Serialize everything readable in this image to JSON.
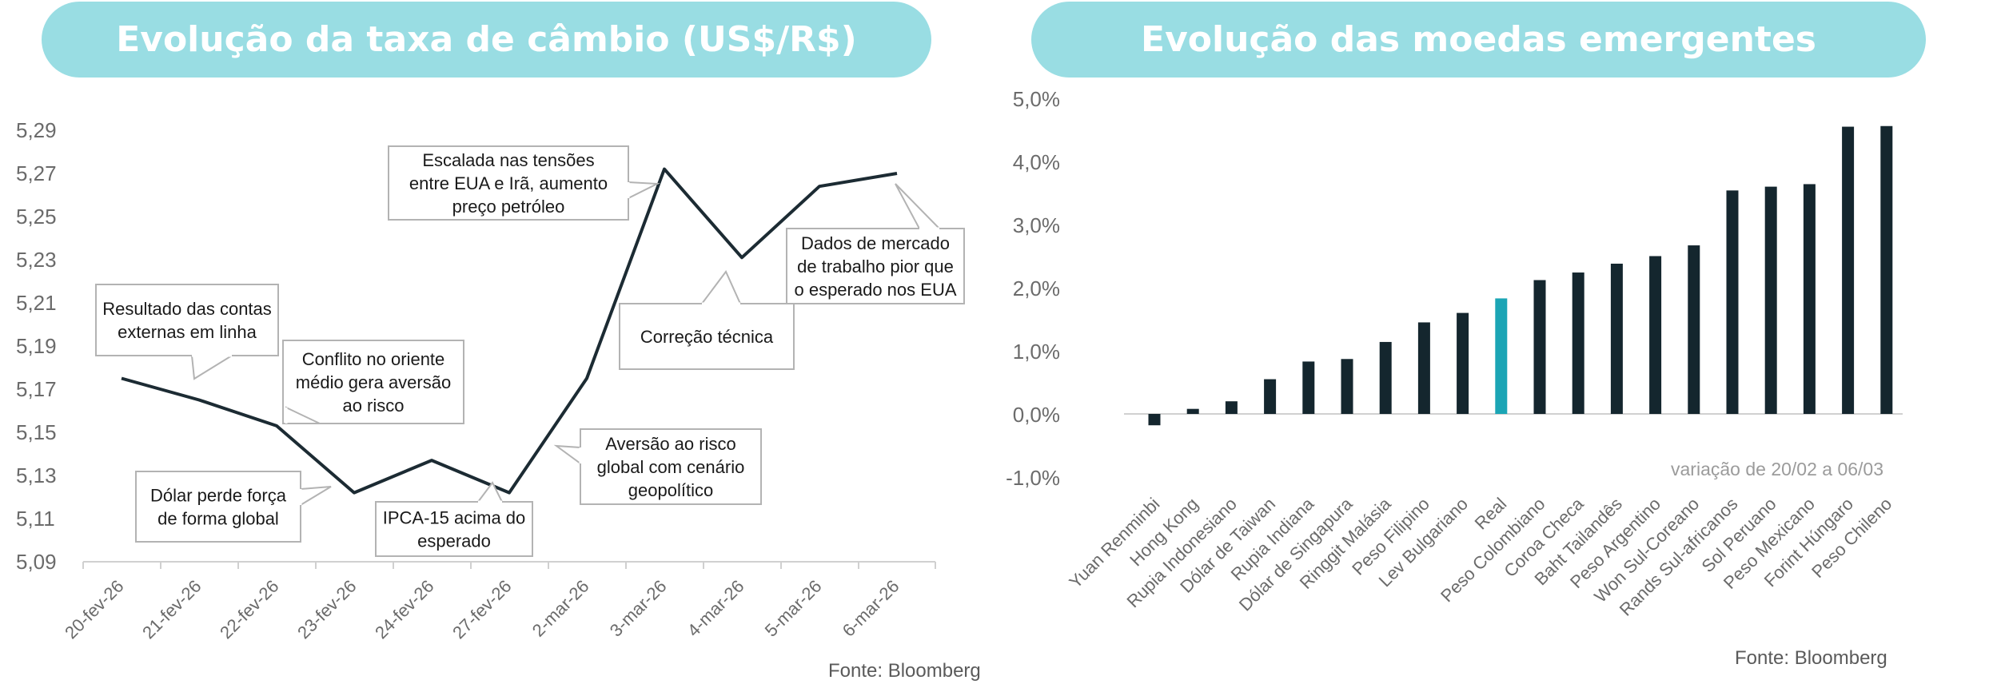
{
  "left_panel": {
    "title": "Evolução da taxa de câmbio (US$/R$)",
    "source": "Fonte: Bloomberg"
  },
  "right_panel": {
    "title": "Evolução das moedas emergentes",
    "source": "Fonte: Bloomberg",
    "note": "variação de 20/02 a 06/03"
  },
  "colors": {
    "title_bg": "#99dde3",
    "line": "#1c2b33",
    "bar": "#14262e",
    "highlight_bar": "#1ba5b5",
    "callout_border": "#b3b3b3"
  },
  "chart_data": [
    {
      "type": "line",
      "title": "Evolução da taxa de câmbio (US$/R$)",
      "categories": [
        "20-fev-26",
        "21-fev-26",
        "22-fev-26",
        "23-fev-26",
        "24-fev-26",
        "27-fev-26",
        "2-mar-26",
        "3-mar-26",
        "4-mar-26",
        "5-mar-26",
        "6-mar-26"
      ],
      "values": [
        5.175,
        5.165,
        5.153,
        5.122,
        5.137,
        5.122,
        5.175,
        5.272,
        5.231,
        5.264,
        5.27
      ],
      "ylim": [
        5.09,
        5.29
      ],
      "yticks": [
        "5,09",
        "5,11",
        "5,13",
        "5,15",
        "5,17",
        "5,19",
        "5,21",
        "5,23",
        "5,25",
        "5,27",
        "5,29"
      ],
      "grid": false,
      "annotations": [
        {
          "text": [
            "Resultado das contas",
            "externas em linha"
          ],
          "category": "21-fev-26"
        },
        {
          "text": [
            "Conflito no oriente",
            "médio gera aversão",
            "ao risco"
          ],
          "category": "22-fev-26"
        },
        {
          "text": [
            "Dólar perde força",
            "de forma global"
          ],
          "category": "23-fev-26"
        },
        {
          "text": [
            "IPCA-15 acima do",
            "esperado"
          ],
          "category": "27-fev-26"
        },
        {
          "text": [
            "Aversão ao risco",
            "global com cenário",
            "geopolítico"
          ],
          "category": "2-mar-26"
        },
        {
          "text": [
            "Escalada nas tensões",
            "entre EUA e Irã, aumento",
            "preço petróleo"
          ],
          "category": "3-mar-26"
        },
        {
          "text": [
            "Correção técnica"
          ],
          "category": "4-mar-26"
        },
        {
          "text": [
            "Dados de mercado",
            "de trabalho pior que",
            "o esperado nos EUA"
          ],
          "category": "6-mar-26"
        }
      ]
    },
    {
      "type": "bar",
      "title": "Evolução das moedas emergentes",
      "categories": [
        "Yuan Renminbi",
        "Hong Kong",
        "Rupia Indonesiano",
        "Dólar de Taiwan",
        "Rupia Indiana",
        "Dólar de Singapura",
        "Ringgit Malásia",
        "Peso Filipino",
        "Lev Bulgariano",
        "Real",
        "Peso Colombiano",
        "Coroa Checa",
        "Baht Tailandês",
        "Peso Argentino",
        "Won Sul-Coreano",
        "Rands Sul-africanos",
        "Sol Peruano",
        "Peso Mexicano",
        "Forint Húngaro",
        "Peso Chileno"
      ],
      "values": [
        -0.18,
        0.08,
        0.2,
        0.55,
        0.83,
        0.87,
        1.14,
        1.45,
        1.6,
        1.83,
        2.12,
        2.24,
        2.38,
        2.5,
        2.67,
        3.54,
        3.6,
        3.64,
        4.55,
        4.56
      ],
      "highlight": "Real",
      "ylim": [
        -1.0,
        5.0
      ],
      "yticks": [
        "-1,0%",
        "0,0%",
        "1,0%",
        "2,0%",
        "3,0%",
        "4,0%",
        "5,0%"
      ],
      "grid": false
    }
  ]
}
